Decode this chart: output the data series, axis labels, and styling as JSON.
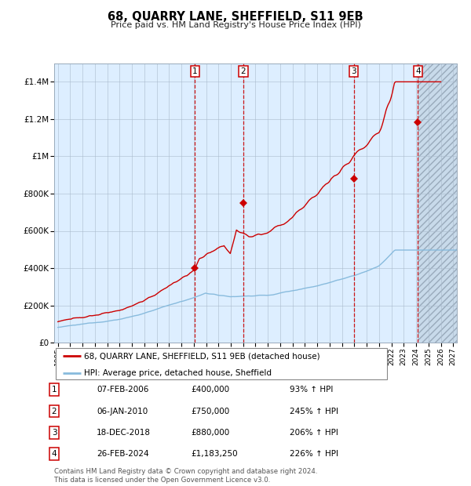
{
  "title": "68, QUARRY LANE, SHEFFIELD, S11 9EB",
  "subtitle": "Price paid vs. HM Land Registry's House Price Index (HPI)",
  "hpi_line_color": "#88bbdd",
  "price_line_color": "#cc0000",
  "marker_color": "#cc0000",
  "background_color": "#ffffff",
  "plot_bg_color": "#ddeeff",
  "grid_color": "#aabbcc",
  "vline_color": "#cc0000",
  "ylim": [
    0,
    1500000
  ],
  "yticks": [
    0,
    200000,
    400000,
    600000,
    800000,
    1000000,
    1200000,
    1400000
  ],
  "xlim_start": 1994.7,
  "xlim_end": 2027.3,
  "xticks": [
    1995,
    1996,
    1997,
    1998,
    1999,
    2000,
    2001,
    2002,
    2003,
    2004,
    2005,
    2006,
    2007,
    2008,
    2009,
    2010,
    2011,
    2012,
    2013,
    2014,
    2015,
    2016,
    2017,
    2018,
    2019,
    2020,
    2021,
    2022,
    2023,
    2024,
    2025,
    2026,
    2027
  ],
  "sale_dates": [
    2006.096,
    2010.014,
    2018.962,
    2024.152
  ],
  "sale_prices": [
    400000,
    750000,
    880000,
    1183250
  ],
  "sale_labels": [
    "1",
    "2",
    "3",
    "4"
  ],
  "sale_date_strs": [
    "07-FEB-2006",
    "06-JAN-2010",
    "18-DEC-2018",
    "26-FEB-2024"
  ],
  "sale_price_strs": [
    "£400,000",
    "£750,000",
    "£880,000",
    "£1,183,250"
  ],
  "sale_hpi_strs": [
    "93% ↑ HPI",
    "245% ↑ HPI",
    "206% ↑ HPI",
    "226% ↑ HPI"
  ],
  "legend_label_red": "68, QUARRY LANE, SHEFFIELD, S11 9EB (detached house)",
  "legend_label_blue": "HPI: Average price, detached house, Sheffield",
  "footnote": "Contains HM Land Registry data © Crown copyright and database right 2024.\nThis data is licensed under the Open Government Licence v3.0.",
  "shaded_region_start": 2006.096,
  "shaded_region_end": 2024.152,
  "hatched_region_end": 2027.3
}
